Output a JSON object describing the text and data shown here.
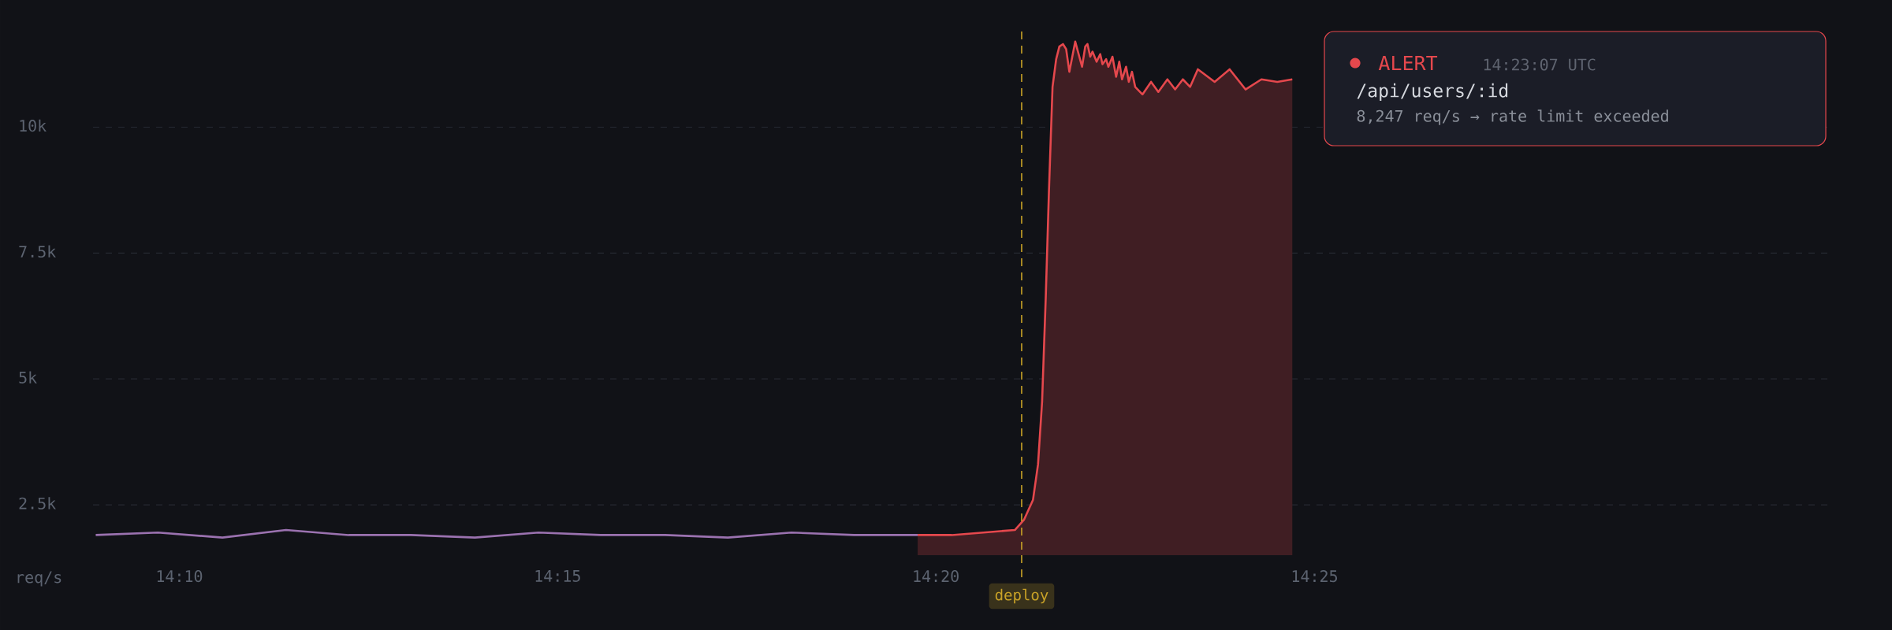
{
  "chart_data": {
    "type": "line",
    "ylabel": "req/s",
    "xlim": [
      14.1477,
      14.5298
    ],
    "ylim": [
      1500,
      11900
    ],
    "xticks": [
      {
        "value": 14.1667,
        "label": "14:10"
      },
      {
        "value": 14.25,
        "label": "14:15"
      },
      {
        "value": 14.3333,
        "label": "14:20"
      },
      {
        "value": 14.4167,
        "label": "14:25"
      }
    ],
    "yticks": [
      {
        "value": 2500,
        "label": "2.5k"
      },
      {
        "value": 5000,
        "label": "5k"
      },
      {
        "value": 7500,
        "label": "7.5k"
      },
      {
        "value": 10000,
        "label": "10k"
      }
    ],
    "grid": "y",
    "series": [
      {
        "color": "#9b72b0",
        "x": [
          14.1483,
          14.162,
          14.1762,
          14.1902,
          14.204,
          14.2177,
          14.2318,
          14.2458,
          14.2595,
          14.2737,
          14.2875,
          14.3015,
          14.3153,
          14.3293
        ],
        "values": [
          1900,
          1950,
          1850,
          2000,
          1900,
          1900,
          1850,
          1950,
          1900,
          1900,
          1850,
          1950,
          1900,
          1900
        ]
      },
      {
        "type": "area",
        "color": "#e5484d",
        "x": [
          14.3293,
          14.3368,
          14.3507,
          14.3527,
          14.3547,
          14.3558,
          14.3567,
          14.3575,
          14.3582,
          14.359,
          14.3598,
          14.3605,
          14.3613,
          14.362,
          14.3627,
          14.364,
          14.3655,
          14.3662,
          14.3667,
          14.3673,
          14.3678,
          14.3687,
          14.3695,
          14.37,
          14.3708,
          14.3713,
          14.3722,
          14.373,
          14.3737,
          14.3743,
          14.3752,
          14.3758,
          14.3765,
          14.3772,
          14.3788,
          14.3807,
          14.3823,
          14.3843,
          14.386,
          14.3877,
          14.3893,
          14.391,
          14.3947,
          14.398,
          14.4015,
          14.405,
          14.4085,
          14.4118
        ],
        "values": [
          1900,
          1900,
          2000,
          2200,
          2600,
          3300,
          4550,
          6600,
          8700,
          10800,
          11350,
          11600,
          11650,
          11550,
          11100,
          11700,
          11200,
          11600,
          11650,
          11400,
          11500,
          11300,
          11450,
          11250,
          11350,
          11200,
          11400,
          11000,
          11300,
          10950,
          11200,
          10900,
          11100,
          10800,
          10650,
          10900,
          10700,
          10950,
          10750,
          10950,
          10800,
          11150,
          10900,
          11150,
          10750,
          10950,
          10900,
          10950
        ]
      }
    ],
    "ref_lines": [
      {
        "axis": "x",
        "value": 14.3522,
        "label": "deploy",
        "color": "#c9a227",
        "line_style": "dashed"
      }
    ],
    "annotations": [
      "ALERT",
      "14:23:07 UTC",
      "/api/users/:id",
      "8,247 req/s → rate limit exceeded"
    ]
  }
}
